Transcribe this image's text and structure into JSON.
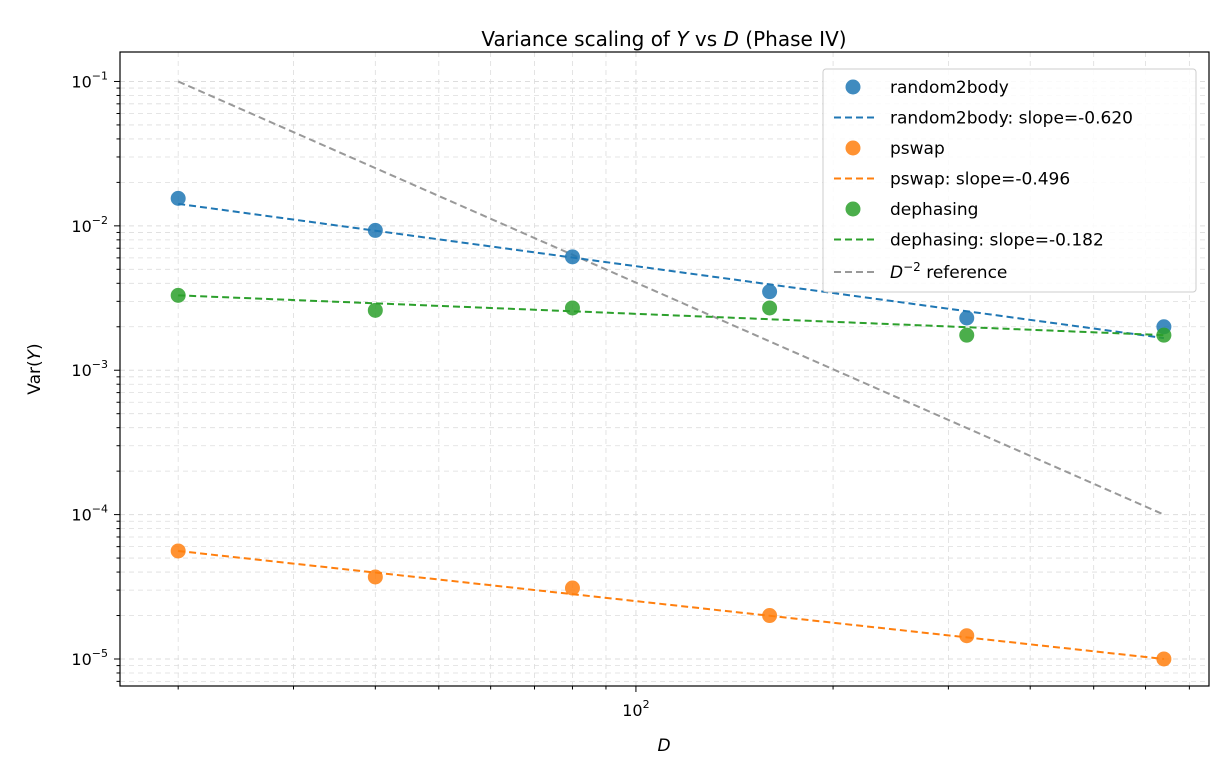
{
  "chart_data": {
    "type": "scatter",
    "title": {
      "pre": "Variance scaling of ",
      "y": "Y",
      "mid": " vs ",
      "d": "D",
      "post": " (Phase IV)"
    },
    "xlabel": "D",
    "ylabel": {
      "pre": "Var(",
      "sym": "Y",
      "post": ")"
    },
    "xscale": "log",
    "yscale": "log",
    "xlim": [
      16.3,
      750
    ],
    "ylim": [
      6.5e-06,
      0.16
    ],
    "x_tick_labels": [
      {
        "value": 100,
        "base": "10",
        "exp": "2"
      }
    ],
    "y_tick_labels": [
      {
        "value": 1e-05,
        "base": "10",
        "exp": "−5"
      },
      {
        "value": 0.0001,
        "base": "10",
        "exp": "−4"
      },
      {
        "value": 0.001,
        "base": "10",
        "exp": "−3"
      },
      {
        "value": 0.01,
        "base": "10",
        "exp": "−2"
      },
      {
        "value": 0.1,
        "base": "10",
        "exp": "−1"
      }
    ],
    "grid": true,
    "legend_position": "top-right",
    "series": [
      {
        "name": "random2body",
        "color": "#1f77b4",
        "points": {
          "x": [
            20,
            40,
            80,
            160,
            320,
            640
          ],
          "y": [
            0.0155,
            0.0093,
            0.0061,
            0.0035,
            0.0023,
            0.002
          ]
        },
        "fit": {
          "label": "random2body: slope=-0.620",
          "x": [
            20,
            640
          ],
          "y": [
            0.0142,
            0.00167
          ]
        }
      },
      {
        "name": "pswap",
        "color": "#ff7f0e",
        "points": {
          "x": [
            20,
            40,
            80,
            160,
            320,
            640
          ],
          "y": [
            5.6e-05,
            3.7e-05,
            3.1e-05,
            2e-05,
            1.45e-05,
            1e-05
          ]
        },
        "fit": {
          "label": "pswap: slope=-0.496",
          "x": [
            20,
            640
          ],
          "y": [
            5.6e-05,
            1e-05
          ]
        }
      },
      {
        "name": "dephasing",
        "color": "#2ca02c",
        "points": {
          "x": [
            20,
            40,
            80,
            160,
            320,
            640
          ],
          "y": [
            0.0033,
            0.0026,
            0.0027,
            0.0027,
            0.00175,
            0.00175
          ]
        },
        "fit": {
          "label": "dephasing: slope=-0.182",
          "x": [
            20,
            640
          ],
          "y": [
            0.0033,
            0.00175
          ]
        }
      }
    ],
    "reference": {
      "label": {
        "sym": "D",
        "exp": "−2",
        "post": " reference"
      },
      "color": "#999999",
      "x": [
        20,
        640
      ],
      "y": [
        0.1,
        0.0001
      ]
    }
  }
}
